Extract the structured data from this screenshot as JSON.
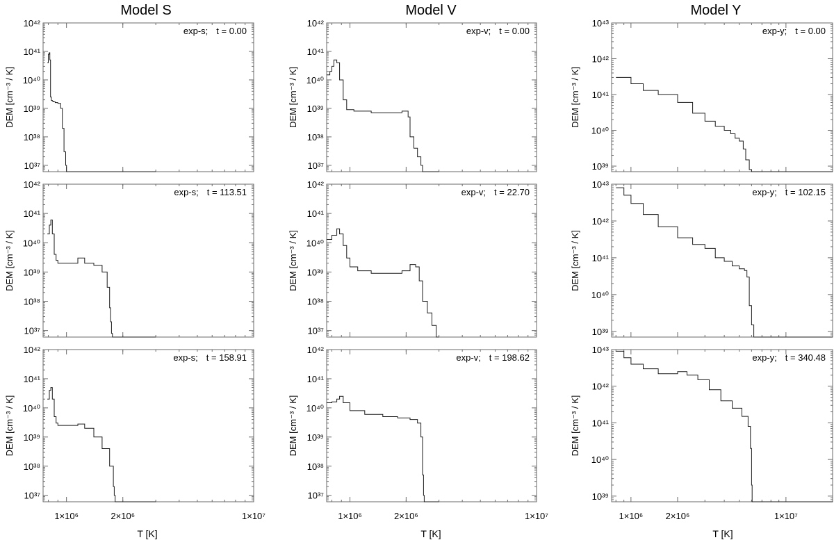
{
  "figure": {
    "column_titles": [
      "Model S",
      "Model V",
      "Model Y"
    ],
    "xlabel": "T  [K]",
    "ylabel": "DEM  [cm⁻³ / K]"
  },
  "chart_data": [
    {
      "type": "line",
      "model": "Model S",
      "run": "exp-s;",
      "time": "t = 0.00",
      "x_scale": "log",
      "xlim": [
        750000,
        10000000
      ],
      "y_scale": "log",
      "ylim": [
        6e+36,
        1e+42
      ],
      "x_ticks": [
        {
          "value": 1000000,
          "label": "1×10⁶"
        },
        {
          "value": 2000000,
          "label": "2×10⁶"
        },
        {
          "value": 10000000,
          "label": "1×10⁷"
        }
      ],
      "y_ticks": [
        {
          "value": 1e+37,
          "label": "10³⁷"
        },
        {
          "value": 1e+38,
          "label": "10³⁸"
        },
        {
          "value": 1e+39,
          "label": "10³⁹"
        },
        {
          "value": 1e+40,
          "label": "10⁴⁰"
        },
        {
          "value": 1e+41,
          "label": "10⁴¹"
        },
        {
          "value": 1e+42,
          "label": "10⁴²"
        }
      ],
      "x": [
        790000,
        800000,
        810000,
        815000,
        822000,
        830000,
        840000,
        850000,
        870000,
        900000,
        930000,
        950000,
        970000,
        990000,
        1000000,
        1010000,
        1030000,
        1200000,
        3000000
      ],
      "y": [
        4e+40,
        8e+40,
        9e+40,
        5e+40,
        2.5e+39,
        1.9e+39,
        1.8e+39,
        1.7e+39,
        1.6e+39,
        1.5e+39,
        1e+39,
        2e+38,
        3e+37,
        1e+37,
        6e+36,
        6e+36,
        6e+36,
        6e+36,
        6e+36
      ]
    },
    {
      "type": "line",
      "model": "Model V",
      "run": "exp-v;",
      "time": "t = 0.00",
      "x_scale": "log",
      "xlim": [
        750000,
        10000000
      ],
      "y_scale": "log",
      "ylim": [
        6e+36,
        1e+42
      ],
      "x_ticks": [
        {
          "value": 1000000,
          "label": "1×10⁶"
        },
        {
          "value": 2000000,
          "label": "2×10⁶"
        },
        {
          "value": 10000000,
          "label": "1×10⁷"
        }
      ],
      "y_ticks": [
        {
          "value": 1e+37,
          "label": "10³⁷"
        },
        {
          "value": 1e+38,
          "label": "10³⁸"
        },
        {
          "value": 1e+39,
          "label": "10³⁹"
        },
        {
          "value": 1e+40,
          "label": "10⁴⁰"
        },
        {
          "value": 1e+41,
          "label": "10⁴¹"
        },
        {
          "value": 1e+42,
          "label": "10⁴²"
        }
      ],
      "x": [
        750000,
        780000,
        800000,
        820000,
        850000,
        880000,
        920000,
        960000,
        1050000,
        1300000,
        1600000,
        1900000,
        2050000,
        2100000,
        2200000,
        2300000,
        2400000,
        2450000,
        2500000,
        2600000,
        3000000
      ],
      "y": [
        1.5e+40,
        2e+40,
        3e+40,
        5e+40,
        4e+40,
        1e+40,
        2e+39,
        9e+38,
        8e+38,
        7e+38,
        7e+38,
        8e+38,
        5e+38,
        1e+38,
        4e+37,
        2e+37,
        1e+37,
        6e+36,
        6e+36,
        6e+36,
        6e+36
      ]
    },
    {
      "type": "line",
      "model": "Model Y",
      "run": "exp-y;",
      "time": "t = 0.00",
      "x_scale": "log",
      "xlim": [
        750000,
        20000000
      ],
      "y_scale": "log",
      "ylim": [
        7e+38,
        1e+43
      ],
      "x_ticks": [
        {
          "value": 1000000,
          "label": "1×10⁶"
        },
        {
          "value": 2000000,
          "label": "2×10⁶"
        },
        {
          "value": 10000000,
          "label": "1×10⁷"
        }
      ],
      "y_ticks": [
        {
          "value": 1e+39,
          "label": "10³⁹"
        },
        {
          "value": 1e+40,
          "label": "10⁴⁰"
        },
        {
          "value": 1e+41,
          "label": "10⁴¹"
        },
        {
          "value": 1e+42,
          "label": "10⁴²"
        },
        {
          "value": 1e+43,
          "label": "10⁴³"
        }
      ],
      "x": [
        800000,
        1000000,
        1200000,
        1500000,
        2000000,
        2500000,
        3000000,
        3500000,
        4000000,
        4400000,
        4700000,
        5000000,
        5300000,
        5500000,
        5800000,
        6000000,
        20000000
      ],
      "y": [
        3e+41,
        2e+41,
        1.3e+41,
        1e+41,
        6e+40,
        3e+40,
        1.8e+40,
        1.3e+40,
        1e+40,
        8e+39,
        6e+39,
        5e+39,
        3e+39,
        1.5e+39,
        8e+38,
        7e+38,
        7e+38
      ]
    },
    {
      "type": "line",
      "model": "Model S",
      "run": "exp-s;",
      "time": "t = 113.51",
      "x_scale": "log",
      "xlim": [
        750000,
        10000000
      ],
      "y_scale": "log",
      "ylim": [
        6e+36,
        1e+42
      ],
      "x_ticks": [
        {
          "value": 1000000,
          "label": "1×10⁶"
        },
        {
          "value": 2000000,
          "label": "2×10⁶"
        },
        {
          "value": 10000000,
          "label": "1×10⁷"
        }
      ],
      "y_ticks": [
        {
          "value": 1e+37,
          "label": "10³⁷"
        },
        {
          "value": 1e+38,
          "label": "10³⁸"
        },
        {
          "value": 1e+39,
          "label": "10³⁹"
        },
        {
          "value": 1e+40,
          "label": "10⁴⁰"
        },
        {
          "value": 1e+41,
          "label": "10⁴¹"
        },
        {
          "value": 1e+42,
          "label": "10⁴²"
        }
      ],
      "x": [
        790000,
        810000,
        825000,
        840000,
        860000,
        880000,
        900000,
        1000000,
        1150000,
        1250000,
        1400000,
        1550000,
        1650000,
        1700000,
        1720000,
        1740000,
        1760000,
        1800000,
        3000000
      ],
      "y": [
        2e+40,
        4e+40,
        6e+40,
        2e+40,
        4e+39,
        2.5e+39,
        2e+39,
        2e+39,
        3e+39,
        2e+39,
        1.7e+39,
        1e+39,
        3e+38,
        6e+37,
        2e+37,
        8e+36,
        6e+36,
        6e+36,
        6e+36
      ]
    },
    {
      "type": "line",
      "model": "Model V",
      "run": "exp-v;",
      "time": "t = 22.70",
      "x_scale": "log",
      "xlim": [
        750000,
        10000000
      ],
      "y_scale": "log",
      "ylim": [
        6e+36,
        1e+42
      ],
      "x_ticks": [
        {
          "value": 1000000,
          "label": "1×10⁶"
        },
        {
          "value": 2000000,
          "label": "2×10⁶"
        },
        {
          "value": 10000000,
          "label": "1×10⁷"
        }
      ],
      "y_ticks": [
        {
          "value": 1e+37,
          "label": "10³⁷"
        },
        {
          "value": 1e+38,
          "label": "10³⁸"
        },
        {
          "value": 1e+39,
          "label": "10³⁹"
        },
        {
          "value": 1e+40,
          "label": "10⁴⁰"
        },
        {
          "value": 1e+41,
          "label": "10⁴¹"
        },
        {
          "value": 1e+42,
          "label": "10⁴²"
        }
      ],
      "x": [
        750000,
        800000,
        850000,
        880000,
        920000,
        960000,
        1000000,
        1100000,
        1300000,
        1600000,
        1900000,
        2100000,
        2250000,
        2350000,
        2450000,
        2600000,
        2750000,
        2900000,
        2950000,
        3000000
      ],
      "y": [
        1.3e+40,
        1.8e+40,
        3e+40,
        2e+40,
        8e+39,
        3e+39,
        1.5e+39,
        1.1e+39,
        9e+38,
        9e+38,
        1.1e+39,
        1.8e+39,
        1.5e+39,
        5e+38,
        1e+38,
        4e+37,
        1.5e+37,
        6e+36,
        6e+36,
        6e+36
      ]
    },
    {
      "type": "line",
      "model": "Model Y",
      "run": "exp-y;",
      "time": "t = 102.15",
      "x_scale": "log",
      "xlim": [
        750000,
        20000000
      ],
      "y_scale": "log",
      "ylim": [
        7e+38,
        1e+43
      ],
      "x_ticks": [
        {
          "value": 1000000,
          "label": "1×10⁶"
        },
        {
          "value": 2000000,
          "label": "2×10⁶"
        },
        {
          "value": 10000000,
          "label": "1×10⁷"
        }
      ],
      "y_ticks": [
        {
          "value": 1e+39,
          "label": "10³⁹"
        },
        {
          "value": 1e+40,
          "label": "10⁴⁰"
        },
        {
          "value": 1e+41,
          "label": "10⁴¹"
        },
        {
          "value": 1e+42,
          "label": "10⁴²"
        },
        {
          "value": 1e+43,
          "label": "10⁴³"
        }
      ],
      "x": [
        800000,
        900000,
        1000000,
        1200000,
        1500000,
        2000000,
        2500000,
        3000000,
        3500000,
        4000000,
        4500000,
        5000000,
        5400000,
        5600000,
        5800000,
        6000000,
        6200000,
        20000000
      ],
      "y": [
        8e+42,
        5e+42,
        3e+42,
        1.5e+42,
        7e+41,
        3.5e+41,
        2.3e+41,
        1.8e+41,
        1e+41,
        8e+40,
        6e+40,
        5e+40,
        4.5e+40,
        3e+40,
        5e+39,
        1.5e+39,
        7e+38,
        7e+38
      ]
    },
    {
      "type": "line",
      "model": "Model S",
      "run": "exp-s;",
      "time": "t = 158.91",
      "x_scale": "log",
      "xlim": [
        750000,
        10000000
      ],
      "y_scale": "log",
      "ylim": [
        6e+36,
        1e+42
      ],
      "x_ticks": [
        {
          "value": 1000000,
          "label": "1×10⁶"
        },
        {
          "value": 2000000,
          "label": "2×10⁶"
        },
        {
          "value": 10000000,
          "label": "1×10⁷"
        }
      ],
      "y_ticks": [
        {
          "value": 1e+37,
          "label": "10³⁷"
        },
        {
          "value": 1e+38,
          "label": "10³⁸"
        },
        {
          "value": 1e+39,
          "label": "10³⁹"
        },
        {
          "value": 1e+40,
          "label": "10⁴⁰"
        },
        {
          "value": 1e+41,
          "label": "10⁴¹"
        },
        {
          "value": 1e+42,
          "label": "10⁴²"
        }
      ],
      "x": [
        790000,
        810000,
        825000,
        840000,
        860000,
        880000,
        900000,
        1000000,
        1150000,
        1250000,
        1400000,
        1550000,
        1700000,
        1780000,
        1800000,
        1820000,
        1850000,
        3000000
      ],
      "y": [
        2e+40,
        4e+40,
        5e+40,
        2e+40,
        5e+39,
        3e+39,
        2.5e+39,
        2.5e+39,
        2.8e+39,
        2e+39,
        1e+39,
        4e+38,
        1e+38,
        2e+37,
        1e+37,
        6e+36,
        6e+36,
        6e+36
      ]
    },
    {
      "type": "line",
      "model": "Model V",
      "run": "exp-v;",
      "time": "t = 198.62",
      "x_scale": "log",
      "xlim": [
        750000,
        10000000
      ],
      "y_scale": "log",
      "ylim": [
        6e+36,
        1e+42
      ],
      "x_ticks": [
        {
          "value": 1000000,
          "label": "1×10⁶"
        },
        {
          "value": 2000000,
          "label": "2×10⁶"
        },
        {
          "value": 10000000,
          "label": "1×10⁷"
        }
      ],
      "y_ticks": [
        {
          "value": 1e+37,
          "label": "10³⁷"
        },
        {
          "value": 1e+38,
          "label": "10³⁸"
        },
        {
          "value": 1e+39,
          "label": "10³⁹"
        },
        {
          "value": 1e+40,
          "label": "10⁴⁰"
        },
        {
          "value": 1e+41,
          "label": "10⁴¹"
        },
        {
          "value": 1e+42,
          "label": "10⁴²"
        }
      ],
      "x": [
        750000,
        800000,
        850000,
        880000,
        920000,
        1000000,
        1200000,
        1500000,
        1800000,
        2100000,
        2300000,
        2400000,
        2450000,
        2480000,
        2500000,
        3000000
      ],
      "y": [
        1.5e+40,
        1.6e+40,
        2e+40,
        2.5e+40,
        1.5e+40,
        8e+39,
        6e+39,
        5e+39,
        4.5e+39,
        4e+39,
        3e+39,
        1e+39,
        5e+37,
        1e+37,
        6e+36,
        6e+36
      ]
    },
    {
      "type": "line",
      "model": "Model Y",
      "run": "exp-y;",
      "time": "t = 340.48",
      "x_scale": "log",
      "xlim": [
        750000,
        20000000
      ],
      "y_scale": "log",
      "ylim": [
        7e+38,
        1e+43
      ],
      "x_ticks": [
        {
          "value": 1000000,
          "label": "1×10⁶"
        },
        {
          "value": 2000000,
          "label": "2×10⁶"
        },
        {
          "value": 10000000,
          "label": "1×10⁷"
        }
      ],
      "y_ticks": [
        {
          "value": 1e+39,
          "label": "10³⁹"
        },
        {
          "value": 1e+40,
          "label": "10⁴⁰"
        },
        {
          "value": 1e+41,
          "label": "10⁴¹"
        },
        {
          "value": 1e+42,
          "label": "10⁴²"
        },
        {
          "value": 1e+43,
          "label": "10⁴³"
        }
      ],
      "x": [
        800000,
        900000,
        1000000,
        1200000,
        1500000,
        1800000,
        2000000,
        2300000,
        2700000,
        3200000,
        3800000,
        4500000,
        5200000,
        5700000,
        5900000,
        6000000,
        6050000,
        20000000
      ],
      "y": [
        9e+42,
        6e+42,
        4e+42,
        3e+42,
        2.2e+42,
        2.2e+42,
        2.5e+42,
        2e+42,
        1.5e+42,
        8e+41,
        4e+41,
        2.5e+41,
        1.5e+41,
        8e+40,
        2e+40,
        2e+39,
        7e+38,
        7e+38
      ]
    }
  ]
}
